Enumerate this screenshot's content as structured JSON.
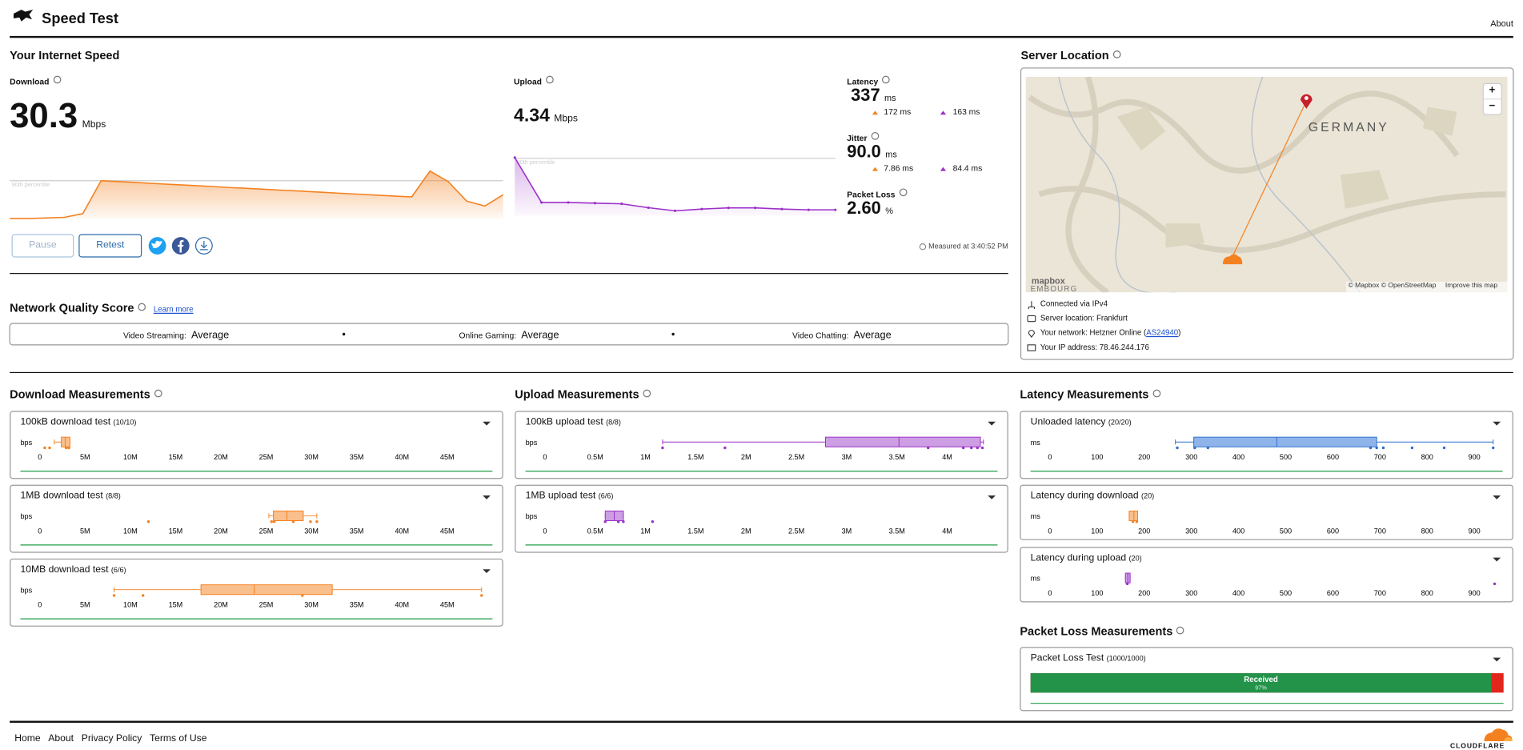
{
  "header": {
    "title": "Speed Test",
    "nav": "About"
  },
  "speed": {
    "title": "Your Internet Speed",
    "download": {
      "label": "Download",
      "value": "30.3",
      "unit": "Mbps",
      "percentile": {
        "label": "90th percentile",
        "value": 30.3
      },
      "samples": [
        0,
        0,
        0.5,
        1,
        4,
        30.3,
        29.5,
        28.8,
        28,
        27.2,
        26.5,
        25.7,
        24.9,
        24.2,
        23.4,
        22.6,
        21.9,
        21.1,
        20.3,
        19.6,
        18.8,
        18,
        17.3,
        38,
        29.5,
        14,
        10,
        19
      ]
    },
    "upload": {
      "label": "Upload",
      "value": "4.34",
      "unit": "Mbps",
      "percentile": {
        "label": "90th percentile",
        "value": 4.34
      },
      "samples": [
        4.4,
        1,
        1,
        0.95,
        0.9,
        0.6,
        0.37,
        0.5,
        0.59,
        0.59,
        0.5,
        0.44,
        0.44
      ]
    },
    "latency": {
      "label": "Latency",
      "value": "337",
      "unit": "ms",
      "down": "172 ms",
      "up": "163 ms"
    },
    "jitter": {
      "label": "Jitter",
      "value": "90.0",
      "unit": "ms",
      "down": "7.86 ms",
      "up": "84.4 ms"
    },
    "packet_loss": {
      "label": "Packet Loss",
      "value": "2.60",
      "unit": "%"
    },
    "buttons": [
      "Pause",
      "Retest"
    ],
    "measured": "Measured at 3:40:52 PM"
  },
  "quality": {
    "title": "Network Quality Score",
    "link": "Learn more",
    "items": [
      {
        "label": "Video Streaming:",
        "value": "Average"
      },
      {
        "label": "Online Gaming:",
        "value": "Average"
      },
      {
        "label": "Video Chatting:",
        "value": "Average"
      }
    ]
  },
  "server": {
    "title": "Server Location",
    "map": {
      "country": "GERMANY",
      "city_fragment": "EMBOURG",
      "logo": "mapbox",
      "attribution": "© Mapbox © OpenStreetMap",
      "improve": "Improve this map",
      "zoom_in": "+",
      "zoom_out": "−"
    },
    "info": {
      "connection": "Connected via IPv4",
      "location": "Server location: Frankfurt",
      "network_prefix": "Your network: Hetzner Online (",
      "network_link": "AS24940",
      "network_suffix": ")",
      "ip": "Your IP address: 78.46.244.176"
    }
  },
  "measurements": [
    {
      "title": "Download Measurements",
      "unit": "bps",
      "xlim": [
        0,
        50000000
      ],
      "xticks": [
        0,
        {
          "value": 5000000,
          "label": "5M"
        },
        {
          "value": 10000000,
          "label": "10M"
        },
        {
          "value": 15000000,
          "label": "15M"
        },
        {
          "value": 20000000,
          "label": "20M"
        },
        {
          "value": 25000000,
          "label": "25M"
        },
        {
          "value": 30000000,
          "label": "30M"
        },
        {
          "value": 35000000,
          "label": "35M"
        },
        {
          "value": 40000000,
          "label": "40M"
        },
        {
          "value": 45000000,
          "label": "45M"
        }
      ],
      "tests": [
        {
          "name": "100kB download test",
          "count": "(10/10)",
          "color": "#f48120",
          "fill": "#f9bf8c",
          "box": {
            "min": 1600000,
            "q1": 2370000,
            "median": 2800000,
            "q3": 3330000,
            "max": 3330000
          },
          "points": [
            540000,
            1080000,
            2900000,
            3200000
          ]
        },
        {
          "name": "1MB download test",
          "count": "(8/8)",
          "color": "#f48120",
          "fill": "#f9bf8c",
          "box": {
            "min": 25300000,
            "q1": 25800000,
            "median": 27300000,
            "q3": 29100000,
            "max": 30600000
          },
          "points": [
            12000000,
            25600000,
            25900000,
            28000000,
            29900000,
            30600000
          ]
        },
        {
          "name": "10MB download test",
          "count": "(6/6)",
          "color": "#f48120",
          "fill": "#f9bf8c",
          "box": {
            "min": 8200000,
            "q1": 17800000,
            "median": 23700000,
            "q3": 32300000,
            "max": 48800000
          },
          "points": [
            8200000,
            11400000,
            29000000,
            48800000
          ]
        }
      ]
    },
    {
      "title": "Upload Measurements",
      "unit": "bps",
      "xlim": [
        0,
        4500000
      ],
      "xticks": [
        0,
        {
          "value": 500000,
          "label": "0.5M"
        },
        {
          "value": 1000000,
          "label": "1M"
        },
        {
          "value": 1500000,
          "label": "1.5M"
        },
        {
          "value": 2000000,
          "label": "2M"
        },
        {
          "value": 2500000,
          "label": "2.5M"
        },
        {
          "value": 3000000,
          "label": "3M"
        },
        {
          "value": 3500000,
          "label": "3.5M"
        },
        {
          "value": 4000000,
          "label": "4M"
        }
      ],
      "tests": [
        {
          "name": "100kB upload test",
          "count": "(8/8)",
          "color": "#9b30c8",
          "fill": "#cd9ee3",
          "box": {
            "min": 1170000,
            "q1": 2790000,
            "median": 3520000,
            "q3": 4330000,
            "max": 4360000
          },
          "points": [
            1170000,
            1790000,
            3810000,
            4160000,
            4240000,
            4300000,
            4350000
          ]
        },
        {
          "name": "1MB upload test",
          "count": "(6/6)",
          "color": "#9b30c8",
          "fill": "#cd9ee3",
          "box": {
            "min": 600000,
            "q1": 600000,
            "median": 690000,
            "q3": 780000,
            "max": 780000
          },
          "points": [
            600000,
            730000,
            780000,
            1070000
          ]
        }
      ]
    },
    {
      "title": "Latency Measurements",
      "unit": "ms",
      "xlim": [
        0,
        960
      ],
      "xticks": [
        0,
        100,
        200,
        300,
        400,
        500,
        600,
        700,
        800,
        900
      ],
      "tests": [
        {
          "name": "Unloaded latency",
          "count": "(20/20)",
          "color": "#2f6fcc",
          "fill": "#8fb4ea",
          "box": {
            "min": 266,
            "q1": 305,
            "median": 481,
            "q3": 693,
            "max": 940
          },
          "points": [
            270,
            307,
            335,
            680,
            693,
            707,
            768,
            836,
            940
          ]
        },
        {
          "name": "Latency during download",
          "count": "(20)",
          "color": "#f48120",
          "fill": "#f9bf8c",
          "box": {
            "min": 168,
            "q1": 168,
            "median": 178,
            "q3": 186,
            "max": 186
          },
          "points": [
            176,
            184
          ]
        },
        {
          "name": "Latency during upload",
          "count": "(20)",
          "color": "#9b30c8",
          "fill": "#cd9ee3",
          "box": {
            "min": 160,
            "q1": 160,
            "median": 165,
            "q3": 170,
            "max": 170
          },
          "points": [
            164,
            943
          ]
        }
      ]
    }
  ],
  "packet_loss": {
    "title": "Packet Loss Measurements",
    "name": "Packet Loss Test",
    "count": "(1000/1000)",
    "bar_label": "Received",
    "received": 97.4,
    "received_label": "97%"
  },
  "footer": {
    "links": [
      "Home",
      "About",
      "Privacy Policy",
      "Terms of Use"
    ],
    "brand": "CLOUDFLARE"
  }
}
